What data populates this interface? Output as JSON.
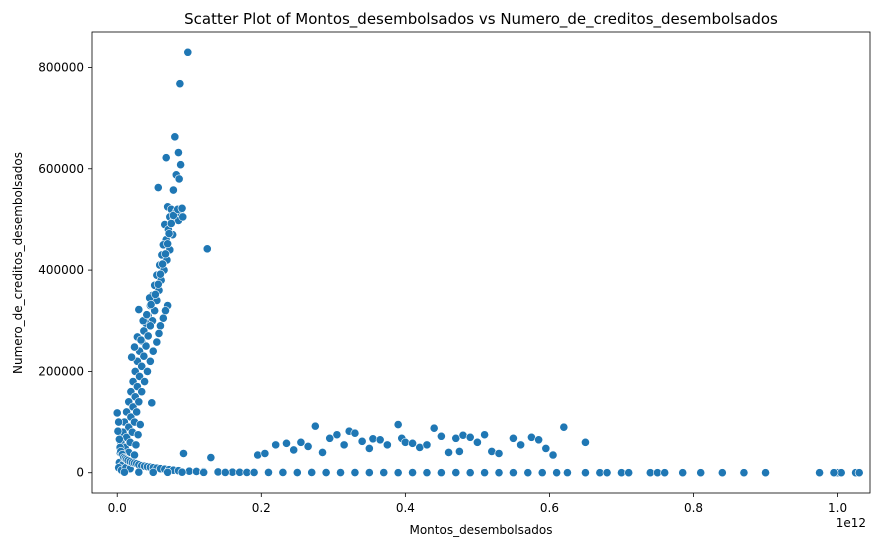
{
  "chart_data": {
    "type": "scatter",
    "title": "Scatter Plot of Montos_desembolsados vs Numero_de_creditos_desembolsados",
    "xlabel": "Montos_desembolsados",
    "ylabel": "Numero_de_creditos_desembolsados",
    "x_offset_label": "1e12",
    "x_scale": 1000000000000.0,
    "xlim": [
      -0.035,
      1.045
    ],
    "ylim": [
      -40000,
      870000
    ],
    "x_ticks": [
      0.0,
      0.2,
      0.4,
      0.6,
      0.8,
      1.0
    ],
    "x_tick_labels": [
      "0.0",
      "0.2",
      "0.4",
      "0.6",
      "0.8",
      "1.0"
    ],
    "y_ticks": [
      0,
      200000,
      400000,
      600000,
      800000
    ],
    "y_tick_labels": [
      "0",
      "200000",
      "400000",
      "600000",
      "800000"
    ],
    "grid": false,
    "legend": "none",
    "marker_color": "#1f77b4",
    "series": [
      {
        "points": [
          [
            0.098,
            830000
          ],
          [
            0.087,
            768000
          ],
          [
            0.08,
            663000
          ],
          [
            0.085,
            632000
          ],
          [
            0.068,
            622000
          ],
          [
            0.088,
            608000
          ],
          [
            0.082,
            588000
          ],
          [
            0.086,
            580000
          ],
          [
            0.057,
            563000
          ],
          [
            0.078,
            558000
          ],
          [
            0.125,
            442000
          ],
          [
            0.07,
            525000
          ],
          [
            0.075,
            520000
          ],
          [
            0.082,
            515000
          ],
          [
            0.088,
            510000
          ],
          [
            0.073,
            505000
          ],
          [
            0.079,
            500000
          ],
          [
            0.085,
            498000
          ],
          [
            0.066,
            490000
          ],
          [
            0.071,
            480000
          ],
          [
            0.077,
            470000
          ],
          [
            0.068,
            460000
          ],
          [
            0.064,
            450000
          ],
          [
            0.073,
            440000
          ],
          [
            0.062,
            430000
          ],
          [
            0.069,
            420000
          ],
          [
            0.059,
            410000
          ],
          [
            0.065,
            400000
          ],
          [
            0.055,
            390000
          ],
          [
            0.061,
            380000
          ],
          [
            0.052,
            370000
          ],
          [
            0.058,
            360000
          ],
          [
            0.049,
            350000
          ],
          [
            0.055,
            340000
          ],
          [
            0.046,
            330000
          ],
          [
            0.07,
            330000
          ],
          [
            0.052,
            320000
          ],
          [
            0.067,
            320000
          ],
          [
            0.043,
            310000
          ],
          [
            0.049,
            300000
          ],
          [
            0.064,
            305000
          ],
          [
            0.04,
            295000
          ],
          [
            0.046,
            290000
          ],
          [
            0.06,
            290000
          ],
          [
            0.037,
            280000
          ],
          [
            0.043,
            270000
          ],
          [
            0.058,
            275000
          ],
          [
            0.034,
            260000
          ],
          [
            0.04,
            250000
          ],
          [
            0.055,
            258000
          ],
          [
            0.031,
            240000
          ],
          [
            0.037,
            230000
          ],
          [
            0.05,
            240000
          ],
          [
            0.028,
            220000
          ],
          [
            0.034,
            210000
          ],
          [
            0.046,
            220000
          ],
          [
            0.025,
            200000
          ],
          [
            0.031,
            190000
          ],
          [
            0.042,
            200000
          ],
          [
            0.022,
            180000
          ],
          [
            0.028,
            170000
          ],
          [
            0.038,
            180000
          ],
          [
            0.019,
            160000
          ],
          [
            0.025,
            150000
          ],
          [
            0.034,
            160000
          ],
          [
            0.016,
            140000
          ],
          [
            0.022,
            130000
          ],
          [
            0.03,
            140000
          ],
          [
            0.048,
            138000
          ],
          [
            0.013,
            120000
          ],
          [
            0.019,
            110000
          ],
          [
            0.027,
            120000
          ],
          [
            0.01,
            100000
          ],
          [
            0.016,
            90000
          ],
          [
            0.024,
            100000
          ],
          [
            0.032,
            95000
          ],
          [
            0.008,
            80000
          ],
          [
            0.013,
            70000
          ],
          [
            0.021,
            80000
          ],
          [
            0.029,
            75000
          ],
          [
            0.005,
            60000
          ],
          [
            0.011,
            50000
          ],
          [
            0.018,
            60000
          ],
          [
            0.026,
            55000
          ],
          [
            0.004,
            40000
          ],
          [
            0.009,
            30000
          ],
          [
            0.016,
            40000
          ],
          [
            0.024,
            35000
          ],
          [
            0.003,
            20000
          ],
          [
            0.007,
            15000
          ],
          [
            0.014,
            25000
          ],
          [
            0.02,
            20000
          ],
          [
            0.002,
            10000
          ],
          [
            0.006,
            5000
          ],
          [
            0.012,
            10000
          ],
          [
            0.018,
            8000
          ],
          [
            0.03,
            322000
          ],
          [
            0.045,
            345000
          ],
          [
            0.036,
            300000
          ],
          [
            0.028,
            268000
          ],
          [
            0.024,
            248000
          ],
          [
            0.02,
            228000
          ],
          [
            0.033,
            262000
          ],
          [
            0.041,
            312000
          ],
          [
            0.047,
            332000
          ],
          [
            0.053,
            352000
          ],
          [
            0.057,
            372000
          ],
          [
            0.06,
            392000
          ],
          [
            0.063,
            412000
          ],
          [
            0.067,
            432000
          ],
          [
            0.07,
            452000
          ],
          [
            0.072,
            472000
          ],
          [
            0.075,
            492000
          ],
          [
            0.078,
            508000
          ],
          [
            0.084,
            520000
          ],
          [
            0.09,
            522000
          ],
          [
            0.091,
            505000
          ],
          [
            0.0,
            118000
          ],
          [
            0.002,
            100000
          ],
          [
            0.001,
            82000
          ],
          [
            0.003,
            66000
          ],
          [
            0.004,
            50000
          ],
          [
            0.005,
            42000
          ],
          [
            0.007,
            36000
          ],
          [
            0.009,
            30000
          ],
          [
            0.011,
            28000
          ],
          [
            0.013,
            26000
          ],
          [
            0.015,
            24000
          ],
          [
            0.018,
            22000
          ],
          [
            0.021,
            20000
          ],
          [
            0.024,
            19000
          ],
          [
            0.027,
            18000
          ],
          [
            0.03,
            16000
          ],
          [
            0.034,
            14000
          ],
          [
            0.038,
            13000
          ],
          [
            0.042,
            12000
          ],
          [
            0.046,
            11000
          ],
          [
            0.05,
            10000
          ],
          [
            0.055,
            9000
          ],
          [
            0.06,
            8000
          ],
          [
            0.066,
            7000
          ],
          [
            0.072,
            6000
          ],
          [
            0.078,
            5000
          ],
          [
            0.085,
            4000
          ],
          [
            0.092,
            38000
          ],
          [
            0.1,
            3000
          ],
          [
            0.11,
            2500
          ],
          [
            0.12,
            2000
          ],
          [
            0.13,
            30000
          ],
          [
            0.14,
            1500
          ],
          [
            0.15,
            1200
          ],
          [
            0.16,
            1000
          ],
          [
            0.17,
            800
          ],
          [
            0.18,
            600
          ],
          [
            0.195,
            35000
          ],
          [
            0.205,
            38000
          ],
          [
            0.22,
            55000
          ],
          [
            0.235,
            58000
          ],
          [
            0.245,
            45000
          ],
          [
            0.255,
            60000
          ],
          [
            0.265,
            52000
          ],
          [
            0.275,
            92000
          ],
          [
            0.285,
            40000
          ],
          [
            0.295,
            68000
          ],
          [
            0.305,
            75000
          ],
          [
            0.315,
            55000
          ],
          [
            0.322,
            82000
          ],
          [
            0.33,
            78000
          ],
          [
            0.34,
            62000
          ],
          [
            0.35,
            48000
          ],
          [
            0.355,
            67000
          ],
          [
            0.365,
            65000
          ],
          [
            0.375,
            55000
          ],
          [
            0.39,
            95000
          ],
          [
            0.395,
            68000
          ],
          [
            0.4,
            60000
          ],
          [
            0.41,
            58000
          ],
          [
            0.42,
            50000
          ],
          [
            0.43,
            55000
          ],
          [
            0.44,
            88000
          ],
          [
            0.45,
            72000
          ],
          [
            0.46,
            40000
          ],
          [
            0.47,
            68000
          ],
          [
            0.475,
            42000
          ],
          [
            0.48,
            74000
          ],
          [
            0.49,
            70000
          ],
          [
            0.5,
            60000
          ],
          [
            0.51,
            75000
          ],
          [
            0.52,
            42000
          ],
          [
            0.53,
            38000
          ],
          [
            0.55,
            68000
          ],
          [
            0.56,
            55000
          ],
          [
            0.575,
            70000
          ],
          [
            0.585,
            65000
          ],
          [
            0.595,
            48000
          ],
          [
            0.605,
            35000
          ],
          [
            0.62,
            90000
          ],
          [
            0.65,
            60000
          ],
          [
            0.01,
            1000
          ],
          [
            0.03,
            1200
          ],
          [
            0.05,
            800
          ],
          [
            0.07,
            900
          ],
          [
            0.09,
            1100
          ],
          [
            0.12,
            700
          ],
          [
            0.15,
            600
          ],
          [
            0.19,
            500
          ],
          [
            0.21,
            600
          ],
          [
            0.23,
            500
          ],
          [
            0.25,
            400
          ],
          [
            0.27,
            500
          ],
          [
            0.29,
            400
          ],
          [
            0.31,
            300
          ],
          [
            0.33,
            400
          ],
          [
            0.35,
            300
          ],
          [
            0.37,
            300
          ],
          [
            0.39,
            200
          ],
          [
            0.41,
            300
          ],
          [
            0.43,
            200
          ],
          [
            0.45,
            200
          ],
          [
            0.47,
            300
          ],
          [
            0.49,
            200
          ],
          [
            0.51,
            200
          ],
          [
            0.53,
            150
          ],
          [
            0.55,
            200
          ],
          [
            0.57,
            150
          ],
          [
            0.59,
            200
          ],
          [
            0.61,
            150
          ],
          [
            0.625,
            200
          ],
          [
            0.65,
            100
          ],
          [
            0.67,
            100
          ],
          [
            0.68,
            150
          ],
          [
            0.7,
            100
          ],
          [
            0.71,
            100
          ],
          [
            0.74,
            100
          ],
          [
            0.75,
            100
          ],
          [
            0.76,
            100
          ],
          [
            0.785,
            100
          ],
          [
            0.81,
            100
          ],
          [
            0.84,
            100
          ],
          [
            0.87,
            100
          ],
          [
            0.9,
            100
          ],
          [
            0.975,
            100
          ],
          [
            1.0,
            100
          ],
          [
            1.005,
            100
          ],
          [
            1.025,
            100
          ],
          [
            1.03,
            100
          ],
          [
            0.995,
            100
          ]
        ]
      }
    ]
  }
}
